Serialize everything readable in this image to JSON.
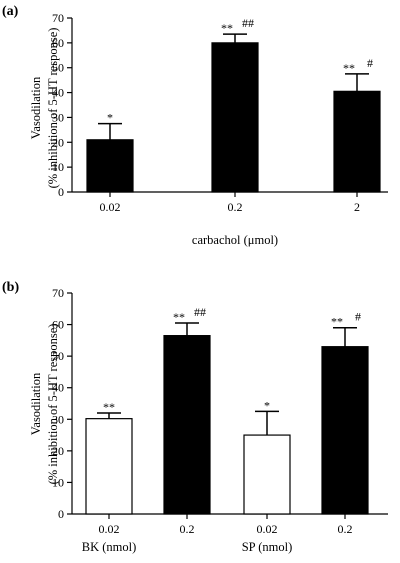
{
  "chart_data": [
    {
      "panel": "(a)",
      "type": "bar",
      "ylabel_line1": "Vasodilation",
      "ylabel_line2": "(% inhibition of 5-HT response)",
      "xlabel": "carbachol (μmol)",
      "ylim": [
        0,
        70
      ],
      "yticks": [
        "0",
        "10",
        "20",
        "30",
        "40",
        "50",
        "60",
        "70"
      ],
      "categories": [
        "0.02",
        "0.2",
        "2"
      ],
      "values": [
        21,
        60,
        40.5
      ],
      "errors": [
        6.5,
        3.5,
        7
      ],
      "fill": [
        "#000000",
        "#000000",
        "#000000"
      ],
      "sig_star": [
        "*",
        "**",
        "**"
      ],
      "sig_hash": [
        "",
        "##",
        "#"
      ],
      "group_labels": []
    },
    {
      "panel": "(b)",
      "type": "bar",
      "ylabel_line1": "Vasodilation",
      "ylabel_line2": "(% inhibition of 5-HT response)",
      "xlabel": "",
      "ylim": [
        0,
        70
      ],
      "yticks": [
        "0",
        "10",
        "20",
        "30",
        "40",
        "50",
        "60",
        "70"
      ],
      "categories": [
        "0.02",
        "0.2",
        "0.02",
        "0.2"
      ],
      "values": [
        30.2,
        56.5,
        25,
        53
      ],
      "errors": [
        1.8,
        4,
        7.5,
        6
      ],
      "fill": [
        "#ffffff",
        "#000000",
        "#ffffff",
        "#000000"
      ],
      "sig_star": [
        "**",
        "**",
        "*",
        "**"
      ],
      "sig_hash": [
        "",
        "##",
        "",
        "#"
      ],
      "group_labels": [
        "BK (nmol)",
        "SP (nmol)"
      ]
    }
  ]
}
